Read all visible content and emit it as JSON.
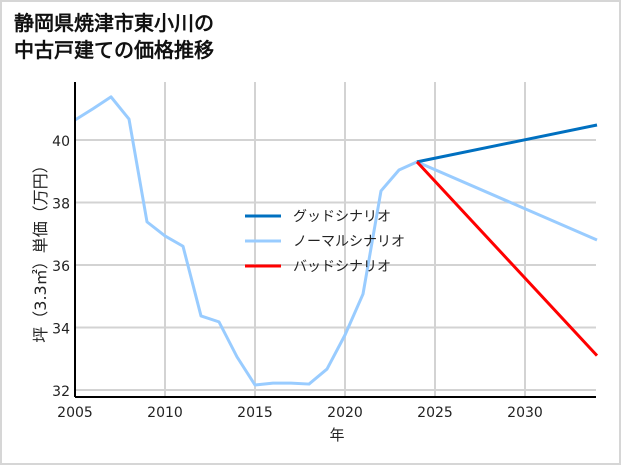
{
  "title_line1": "静岡県焼津市東小川の",
  "title_line2": "中古戸建ての価格推移",
  "chart_data": {
    "type": "line",
    "title": "静岡県焼津市東小川の中古戸建ての価格推移",
    "xlabel": "年",
    "ylabel": "坪（3.3㎡）単価（万円）",
    "xlim": [
      2005,
      2034
    ],
    "ylim": [
      31.8,
      41.8
    ],
    "xticks": [
      2005,
      2010,
      2015,
      2020,
      2025,
      2030
    ],
    "yticks": [
      32,
      34,
      36,
      38,
      40
    ],
    "grid": true,
    "legend_position": "center",
    "series": [
      {
        "name": "ノーマルシナリオ",
        "color": "#99ccff",
        "x": [
          2005,
          2006,
          2007,
          2008,
          2009,
          2010,
          2011,
          2012,
          2013,
          2014,
          2015,
          2016,
          2017,
          2018,
          2019,
          2020,
          2021,
          2022,
          2023,
          2024,
          2034
        ],
        "values": [
          40.64,
          41.0,
          41.38,
          40.67,
          37.38,
          36.93,
          36.6,
          34.37,
          34.18,
          33.06,
          32.16,
          32.22,
          32.22,
          32.19,
          32.67,
          33.76,
          35.07,
          38.37,
          39.04,
          39.3,
          36.8
        ]
      },
      {
        "name": "グッドシナリオ",
        "color": "#0070c0",
        "x": [
          2024,
          2034
        ],
        "values": [
          39.3,
          40.48
        ]
      },
      {
        "name": "バッドシナリオ",
        "color": "#ff0000",
        "x": [
          2024,
          2034
        ],
        "values": [
          39.3,
          33.1
        ]
      }
    ]
  },
  "legend": [
    {
      "label": "グッドシナリオ",
      "color": "#0070c0"
    },
    {
      "label": "ノーマルシナリオ",
      "color": "#99ccff"
    },
    {
      "label": "バッドシナリオ",
      "color": "#ff0000"
    }
  ]
}
